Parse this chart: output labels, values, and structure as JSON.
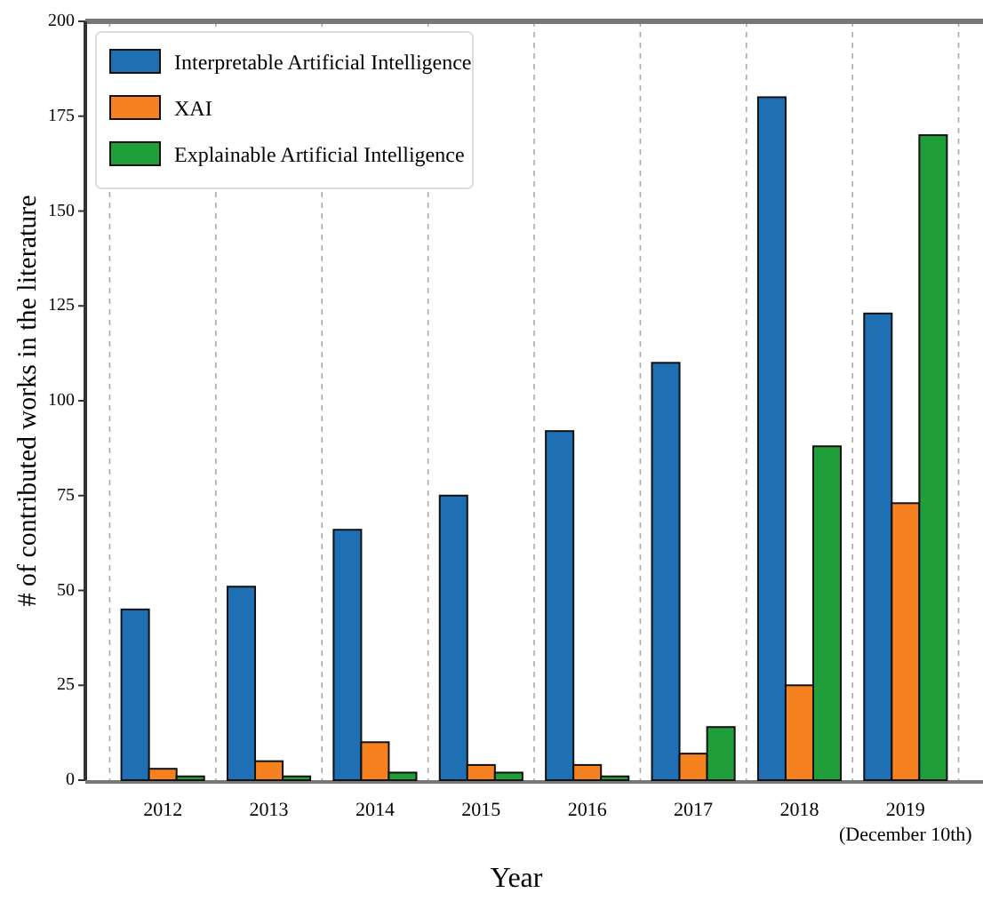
{
  "chart_data": {
    "type": "bar",
    "xlabel": "Year",
    "ylabel": "# of contributed works in the literature",
    "categories": [
      "2012",
      "2013",
      "2014",
      "2015",
      "2016",
      "2017",
      "2018",
      "2019\n(December 10th)"
    ],
    "series": [
      {
        "name": "Interpretable Artificial Intelligence",
        "color": "#1f6fb4",
        "values": [
          45,
          51,
          66,
          75,
          92,
          110,
          180,
          123
        ]
      },
      {
        "name": "XAI",
        "color": "#f5821f",
        "values": [
          3,
          5,
          10,
          4,
          4,
          7,
          25,
          73
        ]
      },
      {
        "name": "Explainable Artificial Intelligence",
        "color": "#1f9e3a",
        "values": [
          1,
          1,
          2,
          2,
          1,
          14,
          88,
          170
        ]
      }
    ],
    "ylim": [
      0,
      200
    ],
    "yticks": [
      0,
      25,
      50,
      75,
      100,
      125,
      150,
      175,
      200
    ],
    "grid": "x",
    "legend": "top left"
  }
}
